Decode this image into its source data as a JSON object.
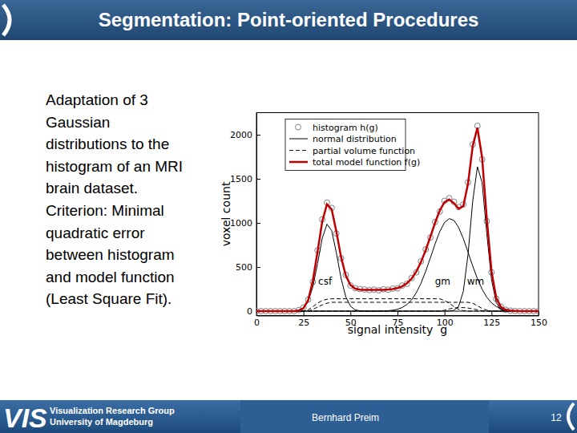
{
  "slide": {
    "title": "Segmentation: Point-oriented Procedures",
    "body": [
      "Adaptation of 3",
      "Gaussian",
      "distributions to the",
      "histogram of an MRI",
      "brain dataset.",
      "Criterion: Minimal",
      "quadratic error",
      "between histogram",
      "and model function",
      "(Least Square Fit)."
    ],
    "footer": {
      "logo": "VIS",
      "group": [
        "Visualization Research Group",
        "University of Magdeburg"
      ],
      "author": "Bernhard Preim",
      "page": "12"
    }
  },
  "chart_data": {
    "type": "line",
    "x_label": "signal intensity  g",
    "y_label": "voxel count",
    "xlim": [
      0,
      150
    ],
    "xticks": [
      0,
      25,
      50,
      75,
      100,
      125,
      150
    ],
    "ylim": [
      -50,
      2250
    ],
    "yticks": [
      0,
      500,
      1000,
      1500,
      2000
    ],
    "grid": false,
    "legend": "upper left",
    "x": [
      0,
      2.5,
      5,
      7.5,
      10,
      12.5,
      15,
      17.5,
      20,
      22.5,
      25,
      27.5,
      30,
      32.5,
      35,
      37.5,
      40,
      42.5,
      45,
      47.5,
      50,
      52.5,
      55,
      57.5,
      60,
      62.5,
      65,
      67.5,
      70,
      72.5,
      75,
      77.5,
      80,
      82.5,
      85,
      87.5,
      90,
      92.5,
      95,
      97.5,
      100,
      102.5,
      105,
      107.5,
      110,
      112.5,
      115,
      117.5,
      120,
      122.5,
      125,
      127.5,
      130,
      132.5,
      135,
      137.5,
      140,
      142.5,
      145,
      147.5,
      150
    ],
    "series": [
      {
        "name": "histogram h(g)",
        "type": "scatter",
        "marker": "circle",
        "color": "#808080",
        "values": [
          0,
          0,
          0,
          0,
          0,
          0,
          0,
          0,
          0,
          12,
          40,
          130,
          330,
          690,
          1040,
          1230,
          1170,
          880,
          600,
          410,
          290,
          260,
          250,
          245,
          238,
          244,
          236,
          248,
          242,
          255,
          258,
          290,
          310,
          375,
          440,
          565,
          700,
          835,
          1010,
          1130,
          1250,
          1280,
          1240,
          1180,
          1210,
          1460,
          1890,
          2100,
          1720,
          1020,
          440,
          140,
          50,
          15,
          5,
          2,
          0,
          0,
          0,
          0,
          0
        ]
      },
      {
        "name": "normal distribution",
        "type": "line",
        "line_style": "solid",
        "color": "#000000",
        "values": [
          0,
          0,
          0,
          0,
          0,
          0,
          0,
          0,
          0,
          8,
          33,
          109,
          275,
          540,
          827,
          986,
          914,
          661,
          372,
          163,
          56,
          14,
          3,
          0,
          0,
          0,
          0,
          0,
          0,
          0,
          0,
          0,
          0,
          0,
          0,
          0,
          0,
          0,
          0,
          0,
          0,
          0,
          0,
          0,
          0,
          0,
          0,
          0,
          0,
          0,
          0,
          0,
          0,
          0,
          0,
          0,
          0,
          0,
          0,
          0,
          0
        ]
      },
      {
        "name": "normal distribution",
        "type": "line",
        "line_style": "solid",
        "color": "#000000",
        "values": [
          0,
          0,
          0,
          0,
          0,
          0,
          0,
          0,
          0,
          0,
          0,
          0,
          0,
          0,
          0,
          0,
          0,
          0,
          0,
          0,
          0,
          0,
          0,
          0,
          0,
          0,
          1,
          2,
          5,
          10,
          21,
          41,
          75,
          128,
          208,
          316,
          451,
          605,
          762,
          903,
          1004,
          1049,
          1029,
          949,
          822,
          669,
          511,
          367,
          248,
          157,
          93,
          52,
          27,
          14,
          6,
          3,
          1,
          0,
          0,
          0,
          0
        ]
      },
      {
        "name": "normal distribution",
        "type": "line",
        "line_style": "solid",
        "color": "#000000",
        "values": [
          0,
          0,
          0,
          0,
          0,
          0,
          0,
          0,
          0,
          0,
          0,
          0,
          0,
          0,
          0,
          0,
          0,
          0,
          0,
          0,
          0,
          0,
          0,
          0,
          0,
          0,
          0,
          0,
          0,
          0,
          0,
          0,
          0,
          0,
          0,
          0,
          0,
          0,
          0,
          0,
          0,
          1,
          9,
          53,
          223,
          641,
          1246,
          1637,
          1456,
          877,
          356,
          98,
          19,
          2,
          0,
          0,
          0,
          0,
          0,
          0,
          0
        ]
      },
      {
        "name": "partial volume function",
        "type": "line",
        "line_style": "dashed",
        "color": "#000000",
        "values": [
          0,
          0,
          0,
          0,
          0,
          0,
          0,
          0,
          0,
          0,
          0,
          15,
          50,
          90,
          120,
          135,
          140,
          140,
          140,
          140,
          140,
          140,
          140,
          140,
          140,
          140,
          140,
          140,
          140,
          140,
          140,
          140,
          140,
          140,
          140,
          140,
          140,
          140,
          140,
          140,
          120,
          90,
          50,
          20,
          5,
          0,
          0,
          0,
          0,
          0,
          0,
          0,
          0,
          0,
          0,
          0,
          0,
          0,
          0,
          0,
          0
        ]
      },
      {
        "name": "partial volume function",
        "type": "line",
        "line_style": "dashed",
        "color": "#000000",
        "values": [
          0,
          0,
          0,
          0,
          0,
          0,
          0,
          0,
          0,
          0,
          0,
          0,
          20,
          45,
          70,
          90,
          100,
          100,
          100,
          100,
          100,
          100,
          100,
          100,
          100,
          100,
          100,
          100,
          100,
          100,
          100,
          100,
          100,
          100,
          100,
          100,
          100,
          100,
          100,
          100,
          100,
          100,
          100,
          100,
          100,
          100,
          90,
          60,
          30,
          10,
          2,
          0,
          0,
          0,
          0,
          0,
          0,
          0,
          0,
          0,
          0
        ]
      },
      {
        "name": "partial volume function",
        "type": "line",
        "line_style": "dashed",
        "color": "#000000",
        "values": [
          0,
          0,
          0,
          0,
          0,
          0,
          0,
          0,
          0,
          0,
          0,
          0,
          0,
          0,
          0,
          0,
          0,
          0,
          0,
          0,
          0,
          0,
          0,
          0,
          0,
          0,
          0,
          0,
          0,
          0,
          0,
          0,
          0,
          0,
          0,
          0,
          0,
          0,
          0,
          0,
          10,
          25,
          35,
          40,
          40,
          35,
          25,
          15,
          5,
          0,
          0,
          0,
          0,
          0,
          0,
          0,
          0,
          0,
          0,
          0,
          0
        ]
      },
      {
        "name": "total model function f(g)",
        "type": "line",
        "line_style": "solid",
        "color": "#c00000",
        "values": [
          0,
          0,
          0,
          0,
          0,
          0,
          0,
          0,
          0,
          8,
          33,
          124,
          345,
          675,
          1017,
          1211,
          1154,
          901,
          612,
          403,
          296,
          254,
          243,
          240,
          240,
          240,
          241,
          242,
          245,
          250,
          261,
          281,
          315,
          368,
          448,
          556,
          691,
          845,
          1002,
          1143,
          1234,
          1265,
          1223,
          1162,
          1190,
          1445,
          1872,
          2079,
          1739,
          1044,
          451,
          150,
          46,
          16,
          6,
          3,
          1,
          0,
          0,
          0,
          0
        ]
      }
    ],
    "annotations": [
      {
        "text": "csf",
        "x": 36.5,
        "y": 300
      },
      {
        "text": "gm",
        "x": 99,
        "y": 300
      },
      {
        "text": "wm",
        "x": 116.5,
        "y": 300
      }
    ]
  }
}
